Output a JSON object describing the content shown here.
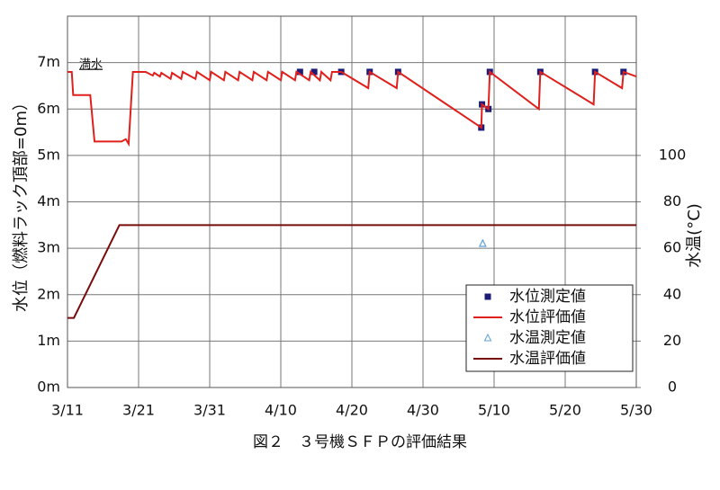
{
  "chart_data": {
    "type": "line",
    "title": "図２　３号機ＳＦＰの評価結果",
    "y_label": "水位（燃料ラック頂部=0m）",
    "y2_label": "水温(°C)",
    "annotations": [
      "満水"
    ],
    "xlim": [
      0,
      80
    ],
    "xticks": [
      {
        "value": 0,
        "label": "3/11"
      },
      {
        "value": 10,
        "label": "3/21"
      },
      {
        "value": 20,
        "label": "3/31"
      },
      {
        "value": 30,
        "label": "4/10"
      },
      {
        "value": 40,
        "label": "4/20"
      },
      {
        "value": 50,
        "label": "4/30"
      },
      {
        "value": 60,
        "label": "5/10"
      },
      {
        "value": 70,
        "label": "5/20"
      },
      {
        "value": 80,
        "label": "5/30"
      }
    ],
    "ylim": [
      0,
      8
    ],
    "yticks": [
      {
        "value": 0,
        "label": "0m"
      },
      {
        "value": 1,
        "label": "1m"
      },
      {
        "value": 2,
        "label": "2m"
      },
      {
        "value": 3,
        "label": "3m"
      },
      {
        "value": 4,
        "label": "4m"
      },
      {
        "value": 5,
        "label": "5m"
      },
      {
        "value": 6,
        "label": "6m"
      },
      {
        "value": 7,
        "label": "7m"
      }
    ],
    "y2lim": [
      0,
      160
    ],
    "y2ticks": [
      0,
      20,
      40,
      60,
      80,
      100
    ],
    "grid": true,
    "legend": "lower right",
    "series": [
      {
        "name": "水位測定値",
        "type": "scatter",
        "marker": "square",
        "color": "#1c1c78",
        "axis": "y",
        "x": [
          32.7,
          34.7,
          38.5,
          42.5,
          46.5,
          58.2,
          58.3,
          59.2,
          59.4,
          66.5,
          74.2,
          78.2
        ],
        "values": [
          6.8,
          6.8,
          6.8,
          6.8,
          6.8,
          5.6,
          6.1,
          6.0,
          6.8,
          6.8,
          6.8,
          6.8
        ]
      },
      {
        "name": "水位評価値",
        "type": "line",
        "color": "#e0201c",
        "axis": "y",
        "x": [
          0,
          0.6,
          0.8,
          3.2,
          3.8,
          7.6,
          8.2,
          8.6,
          9.2,
          11,
          12,
          12.2,
          13,
          13.2,
          14.5,
          14.7,
          16,
          16.2,
          18,
          18.2,
          20,
          20.2,
          22,
          22.2,
          24,
          24.2,
          26,
          26.2,
          28,
          28.2,
          30,
          30.2,
          32,
          32.2,
          34,
          34.2,
          35.5,
          35.7,
          37,
          37.2,
          38.5,
          42.3,
          42.5,
          46.3,
          46.5,
          58.2,
          58.3,
          59.2,
          59.4,
          66.3,
          66.5,
          74,
          74.2,
          78,
          78.2,
          80
        ],
        "values": [
          6.8,
          6.8,
          6.3,
          6.3,
          5.3,
          5.3,
          5.35,
          5.25,
          6.8,
          6.8,
          6.72,
          6.78,
          6.7,
          6.78,
          6.65,
          6.78,
          6.65,
          6.8,
          6.65,
          6.8,
          6.62,
          6.8,
          6.62,
          6.8,
          6.62,
          6.8,
          6.62,
          6.8,
          6.62,
          6.8,
          6.62,
          6.8,
          6.62,
          6.8,
          6.62,
          6.8,
          6.62,
          6.8,
          6.62,
          6.8,
          6.8,
          6.45,
          6.8,
          6.45,
          6.8,
          5.6,
          6.1,
          6.0,
          6.8,
          6.0,
          6.8,
          6.1,
          6.8,
          6.45,
          6.8,
          6.7
        ]
      },
      {
        "name": "水温測定値",
        "type": "scatter",
        "marker": "triangle",
        "color": "#5fa0d8",
        "axis": "y2",
        "x": [
          58.4
        ],
        "values": [
          62
        ]
      },
      {
        "name": "水温評価値",
        "type": "line",
        "color": "#780c0c",
        "axis": "y2",
        "x": [
          0,
          0.9,
          7.3,
          80
        ],
        "values": [
          30,
          30,
          70,
          70
        ]
      }
    ]
  }
}
